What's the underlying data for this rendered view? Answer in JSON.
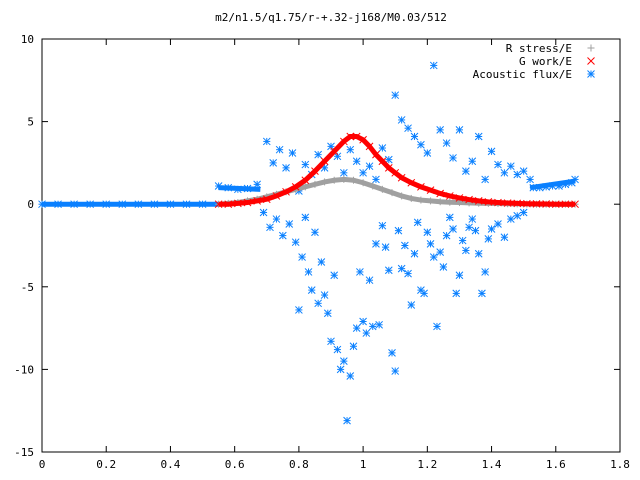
{
  "chart_data": {
    "type": "scatter",
    "title": "m2/n1.5/q1.75/r-+.32-j168/M0.03/512",
    "xlabel": "",
    "ylabel": "",
    "xlim": [
      0,
      1.8
    ],
    "ylim": [
      -15,
      10
    ],
    "x_ticks": [
      "0",
      "0.2",
      "0.4",
      "0.6",
      "0.8",
      "1",
      "1.2",
      "1.4",
      "1.6",
      "1.8"
    ],
    "y_ticks": [
      "10",
      "5",
      "0",
      "-5",
      "-10",
      "-15"
    ],
    "grid": false,
    "legend_position": "top-right",
    "series": [
      {
        "name": "R stress/E",
        "marker": "plus",
        "color": "#a0a0a0",
        "points": [
          [
            0.55,
            0.0
          ],
          [
            0.58,
            0.05
          ],
          [
            0.61,
            0.1
          ],
          [
            0.64,
            0.2
          ],
          [
            0.67,
            0.3
          ],
          [
            0.7,
            0.45
          ],
          [
            0.73,
            0.6
          ],
          [
            0.76,
            0.75
          ],
          [
            0.79,
            0.9
          ],
          [
            0.82,
            1.05
          ],
          [
            0.85,
            1.2
          ],
          [
            0.88,
            1.35
          ],
          [
            0.91,
            1.45
          ],
          [
            0.94,
            1.5
          ],
          [
            0.97,
            1.45
          ],
          [
            1.0,
            1.3
          ],
          [
            1.03,
            1.1
          ],
          [
            1.06,
            0.9
          ],
          [
            1.09,
            0.7
          ],
          [
            1.12,
            0.5
          ],
          [
            1.15,
            0.35
          ],
          [
            1.18,
            0.25
          ],
          [
            1.21,
            0.2
          ],
          [
            1.24,
            0.15
          ],
          [
            1.27,
            0.12
          ],
          [
            1.3,
            0.1
          ],
          [
            1.33,
            0.08
          ],
          [
            1.36,
            0.06
          ],
          [
            1.39,
            0.05
          ],
          [
            1.42,
            0.04
          ],
          [
            1.45,
            0.03
          ],
          [
            1.48,
            0.02
          ],
          [
            1.51,
            0.01
          ],
          [
            1.54,
            0.0
          ],
          [
            1.57,
            0.0
          ],
          [
            1.6,
            0.0
          ],
          [
            1.63,
            0.0
          ],
          [
            1.66,
            0.0
          ]
        ]
      },
      {
        "name": "G work/E",
        "marker": "cross",
        "color": "#ff0000",
        "points": [
          [
            0.55,
            0.0
          ],
          [
            0.58,
            0.0
          ],
          [
            0.61,
            0.05
          ],
          [
            0.64,
            0.1
          ],
          [
            0.67,
            0.2
          ],
          [
            0.7,
            0.3
          ],
          [
            0.73,
            0.5
          ],
          [
            0.76,
            0.75
          ],
          [
            0.79,
            1.05
          ],
          [
            0.82,
            1.45
          ],
          [
            0.85,
            2.0
          ],
          [
            0.88,
            2.6
          ],
          [
            0.91,
            3.2
          ],
          [
            0.94,
            3.8
          ],
          [
            0.96,
            4.1
          ],
          [
            0.98,
            4.1
          ],
          [
            1.0,
            3.9
          ],
          [
            1.02,
            3.5
          ],
          [
            1.04,
            3.0
          ],
          [
            1.06,
            2.6
          ],
          [
            1.08,
            2.2
          ],
          [
            1.1,
            1.9
          ],
          [
            1.12,
            1.6
          ],
          [
            1.15,
            1.3
          ],
          [
            1.18,
            1.05
          ],
          [
            1.21,
            0.85
          ],
          [
            1.24,
            0.65
          ],
          [
            1.27,
            0.5
          ],
          [
            1.3,
            0.38
          ],
          [
            1.33,
            0.28
          ],
          [
            1.36,
            0.2
          ],
          [
            1.39,
            0.14
          ],
          [
            1.42,
            0.1
          ],
          [
            1.45,
            0.07
          ],
          [
            1.48,
            0.05
          ],
          [
            1.51,
            0.03
          ],
          [
            1.54,
            0.02
          ],
          [
            1.57,
            0.01
          ],
          [
            1.6,
            0.0
          ],
          [
            1.63,
            0.0
          ],
          [
            1.66,
            0.0
          ]
        ]
      },
      {
        "name": "Acoustic flux/E",
        "marker": "star",
        "color": "#0a80ff",
        "points": [
          [
            0.0,
            0.0
          ],
          [
            0.05,
            0.0
          ],
          [
            0.1,
            0.0
          ],
          [
            0.15,
            0.0
          ],
          [
            0.2,
            0.0
          ],
          [
            0.25,
            0.0
          ],
          [
            0.3,
            0.0
          ],
          [
            0.35,
            0.0
          ],
          [
            0.4,
            0.0
          ],
          [
            0.45,
            0.0
          ],
          [
            0.5,
            0.0
          ],
          [
            0.55,
            1.1
          ],
          [
            0.58,
            1.0
          ],
          [
            0.61,
            0.9
          ],
          [
            0.64,
            0.95
          ],
          [
            0.67,
            1.2
          ],
          [
            0.7,
            3.8
          ],
          [
            0.72,
            2.5
          ],
          [
            0.74,
            3.3
          ],
          [
            0.76,
            2.2
          ],
          [
            0.78,
            3.1
          ],
          [
            0.69,
            -0.5
          ],
          [
            0.71,
            -1.4
          ],
          [
            0.73,
            -0.9
          ],
          [
            0.75,
            -1.9
          ],
          [
            0.77,
            -1.2
          ],
          [
            0.79,
            -2.3
          ],
          [
            0.8,
            -6.4
          ],
          [
            0.81,
            -3.2
          ],
          [
            0.82,
            -0.8
          ],
          [
            0.83,
            -4.1
          ],
          [
            0.84,
            -5.2
          ],
          [
            0.85,
            -1.7
          ],
          [
            0.86,
            -6.0
          ],
          [
            0.87,
            -3.5
          ],
          [
            0.88,
            -5.5
          ],
          [
            0.89,
            -6.6
          ],
          [
            0.9,
            -8.3
          ],
          [
            0.91,
            -4.3
          ],
          [
            0.92,
            -8.8
          ],
          [
            0.93,
            -10.0
          ],
          [
            0.94,
            -9.5
          ],
          [
            0.95,
            -13.1
          ],
          [
            0.96,
            -10.4
          ],
          [
            0.97,
            -8.6
          ],
          [
            0.98,
            -7.5
          ],
          [
            0.99,
            -4.1
          ],
          [
            1.0,
            -7.1
          ],
          [
            1.01,
            -7.8
          ],
          [
            1.02,
            -4.6
          ],
          [
            1.03,
            -7.4
          ],
          [
            1.04,
            -2.4
          ],
          [
            1.05,
            -7.3
          ],
          [
            1.06,
            -1.3
          ],
          [
            1.07,
            -2.6
          ],
          [
            1.08,
            -4.0
          ],
          [
            1.09,
            -9.0
          ],
          [
            1.1,
            -10.1
          ],
          [
            1.11,
            -1.6
          ],
          [
            1.12,
            -3.9
          ],
          [
            1.13,
            -2.5
          ],
          [
            1.14,
            -4.2
          ],
          [
            1.15,
            -6.1
          ],
          [
            1.16,
            -3.0
          ],
          [
            1.17,
            -1.1
          ],
          [
            1.18,
            -5.2
          ],
          [
            1.19,
            -5.4
          ],
          [
            1.2,
            -1.7
          ],
          [
            1.21,
            -2.4
          ],
          [
            1.22,
            -3.2
          ],
          [
            1.23,
            -7.4
          ],
          [
            1.24,
            -2.9
          ],
          [
            1.25,
            -3.8
          ],
          [
            1.26,
            -1.9
          ],
          [
            1.27,
            -0.8
          ],
          [
            1.28,
            -1.5
          ],
          [
            1.29,
            -5.4
          ],
          [
            1.3,
            -4.3
          ],
          [
            1.31,
            -2.2
          ],
          [
            1.32,
            -2.8
          ],
          [
            1.33,
            -1.4
          ],
          [
            1.34,
            -0.9
          ],
          [
            1.35,
            -1.6
          ],
          [
            1.36,
            -3.0
          ],
          [
            1.37,
            -5.4
          ],
          [
            1.38,
            -4.1
          ],
          [
            1.39,
            -2.1
          ],
          [
            1.4,
            -1.5
          ],
          [
            1.42,
            -1.2
          ],
          [
            1.44,
            -2.0
          ],
          [
            1.46,
            -0.9
          ],
          [
            1.48,
            -0.7
          ],
          [
            1.5,
            -0.5
          ],
          [
            0.8,
            0.8
          ],
          [
            0.82,
            2.4
          ],
          [
            0.84,
            1.8
          ],
          [
            0.86,
            3.0
          ],
          [
            0.88,
            2.2
          ],
          [
            0.9,
            3.5
          ],
          [
            0.92,
            2.9
          ],
          [
            0.94,
            1.9
          ],
          [
            0.96,
            3.3
          ],
          [
            0.98,
            2.6
          ],
          [
            1.0,
            1.9
          ],
          [
            1.02,
            2.3
          ],
          [
            1.04,
            1.5
          ],
          [
            1.06,
            3.4
          ],
          [
            1.08,
            2.7
          ],
          [
            1.1,
            6.6
          ],
          [
            1.12,
            5.1
          ],
          [
            1.14,
            4.6
          ],
          [
            1.16,
            4.1
          ],
          [
            1.18,
            3.6
          ],
          [
            1.2,
            3.1
          ],
          [
            1.22,
            8.4
          ],
          [
            1.24,
            4.5
          ],
          [
            1.26,
            3.7
          ],
          [
            1.28,
            2.8
          ],
          [
            1.3,
            4.5
          ],
          [
            1.32,
            2.0
          ],
          [
            1.34,
            2.6
          ],
          [
            1.36,
            4.1
          ],
          [
            1.38,
            1.5
          ],
          [
            1.4,
            3.2
          ],
          [
            1.42,
            2.4
          ],
          [
            1.44,
            1.9
          ],
          [
            1.46,
            2.3
          ],
          [
            1.48,
            1.8
          ],
          [
            1.5,
            2.0
          ],
          [
            1.52,
            1.5
          ],
          [
            1.53,
            1.0
          ],
          [
            1.55,
            1.0
          ],
          [
            1.57,
            1.05
          ],
          [
            1.59,
            1.1
          ],
          [
            1.61,
            1.1
          ],
          [
            1.63,
            1.2
          ],
          [
            1.65,
            1.3
          ],
          [
            1.66,
            1.5
          ]
        ]
      }
    ]
  }
}
